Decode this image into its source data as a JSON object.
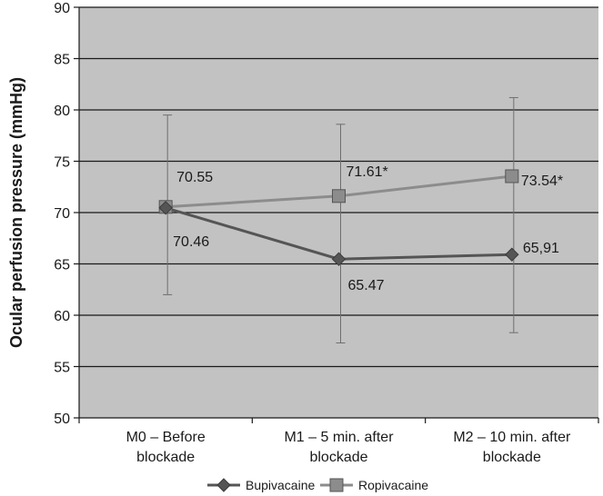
{
  "chart_data": {
    "type": "line",
    "title": "",
    "xlabel": "",
    "ylabel": "Ocular perfusion pressure (mmHg)",
    "ylim": [
      50,
      90
    ],
    "yticks": [
      50,
      55,
      60,
      65,
      70,
      75,
      80,
      85,
      90
    ],
    "grid": "horizontal",
    "legend_position": "bottom",
    "categories": [
      [
        "M0 – Before",
        "blockade"
      ],
      [
        "M1 – 5 min. after",
        "blockade"
      ],
      [
        "M2 – 10 min. after",
        "blockade"
      ]
    ],
    "series": [
      {
        "name": "Bupivacaine",
        "color": "#555555",
        "marker": "diamond",
        "values": [
          70.46,
          65.47,
          65.91
        ],
        "labels": [
          "70.46",
          "65.47",
          "65,91"
        ],
        "error_low": [
          62.0,
          57.3,
          58.3
        ],
        "error_high": [
          79.5,
          78.6,
          81.2
        ]
      },
      {
        "name": "Ropivacaine",
        "color": "#8c8c8c",
        "marker": "square",
        "values": [
          70.55,
          71.61,
          73.54
        ],
        "labels": [
          "70.55",
          "71.61*",
          "73.54*"
        ],
        "error_low": [
          62.0,
          57.3,
          58.3
        ],
        "error_high": [
          79.5,
          78.6,
          81.2
        ]
      }
    ]
  }
}
